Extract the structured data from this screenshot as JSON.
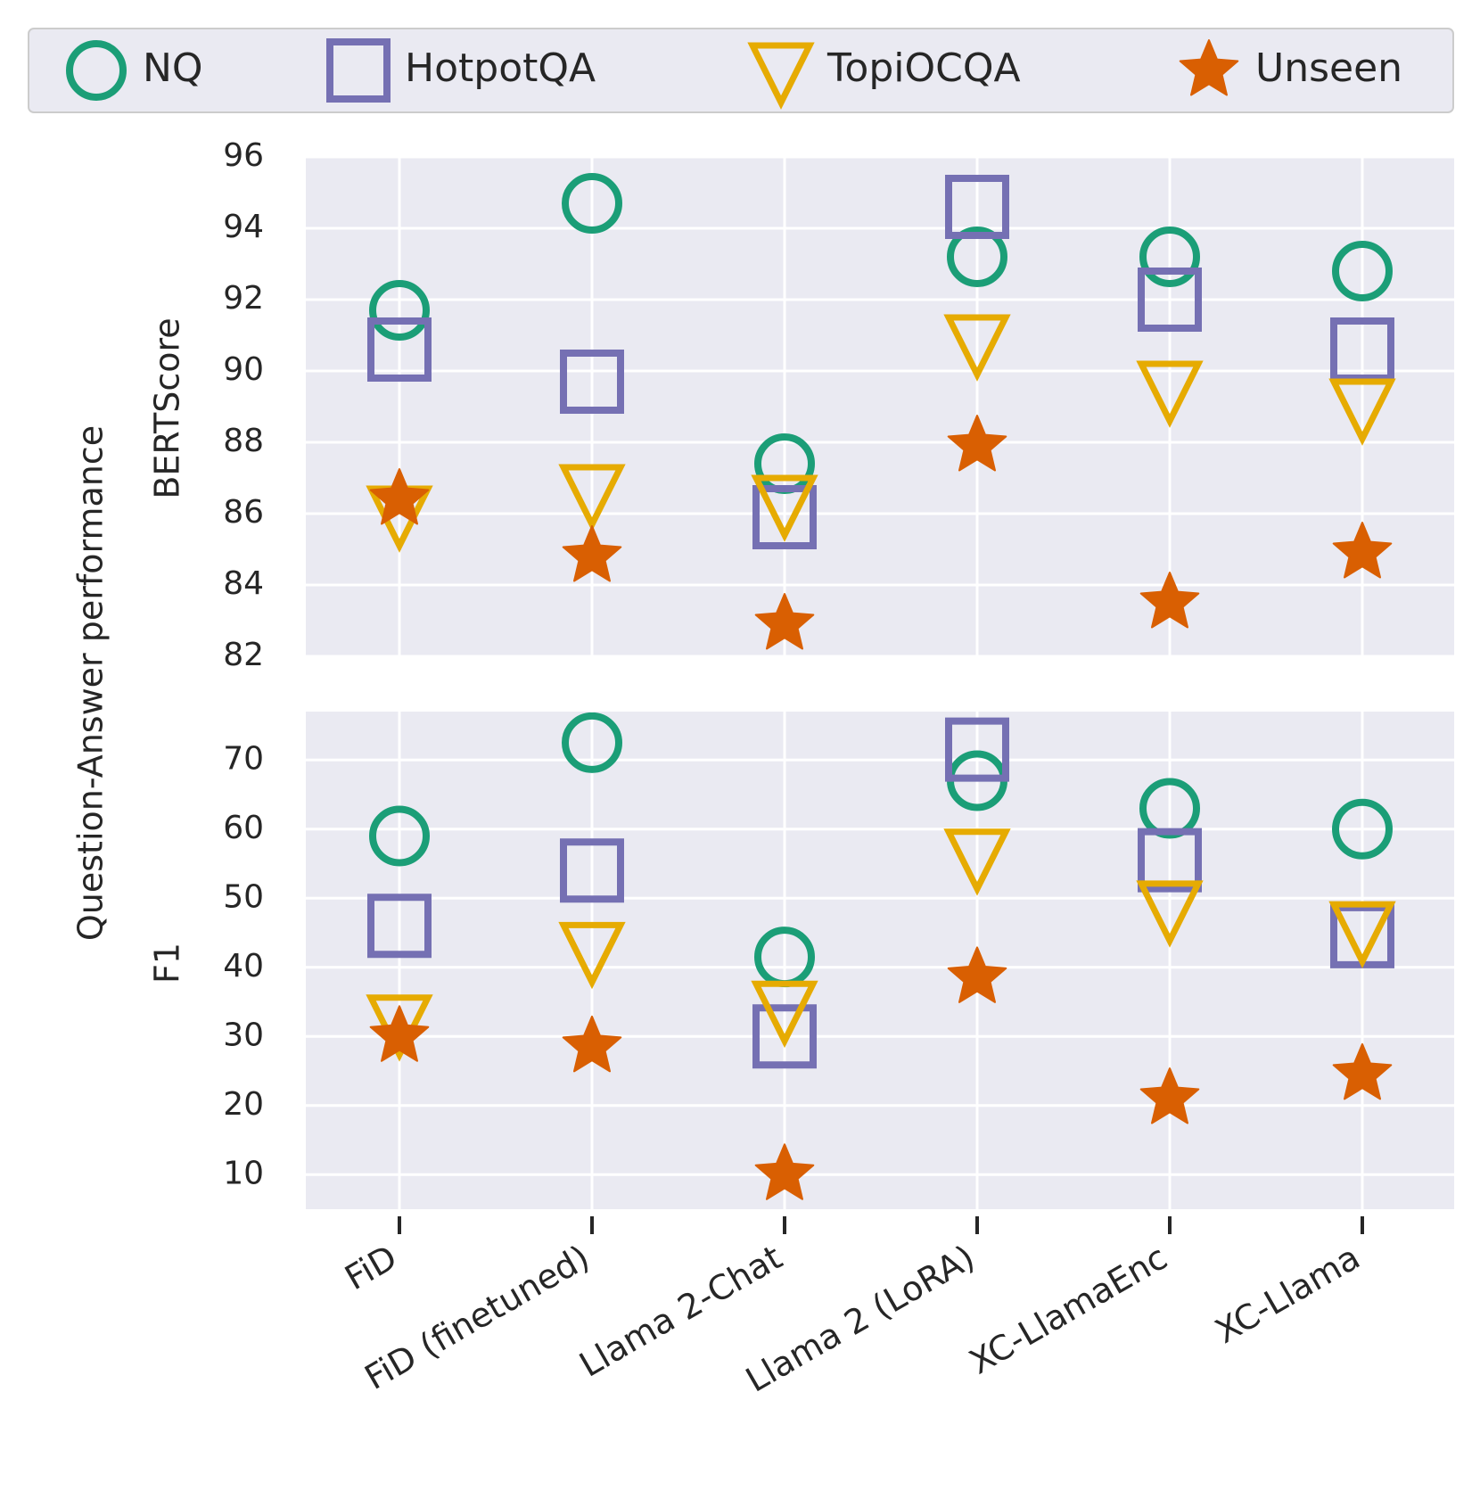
{
  "chart_data": {
    "type": "scatter",
    "suptitle_ylabel": "Question-Answer performance",
    "categories": [
      "FiD",
      "FiD (finetuned)",
      "Llama 2-Chat",
      "Llama 2 (LoRA)",
      "XC-LlamaEnc",
      "XC-Llama"
    ],
    "legend": {
      "placement": "top",
      "entries": [
        {
          "name": "NQ",
          "marker": "circle",
          "color": "#1b9e77"
        },
        {
          "name": "HotpotQA",
          "marker": "square",
          "color": "#7570b3"
        },
        {
          "name": "TopiOCQA",
          "marker": "triangle-down",
          "color": "#e6ab02"
        },
        {
          "name": "Unseen",
          "marker": "star",
          "color": "#d95f02"
        }
      ]
    },
    "panels": [
      {
        "ylabel": "BERTScore",
        "ylim": [
          82,
          96
        ],
        "yticks": [
          "82",
          "84",
          "86",
          "88",
          "90",
          "92",
          "94",
          "96"
        ],
        "series": [
          {
            "name": "NQ",
            "values": [
              91.7,
              94.7,
              87.4,
              93.2,
              93.2,
              92.8
            ]
          },
          {
            "name": "HotpotQA",
            "values": [
              90.6,
              89.7,
              85.9,
              94.6,
              92.0,
              90.6
            ]
          },
          {
            "name": "TopiOCQA",
            "values": [
              86.0,
              86.6,
              86.3,
              90.8,
              89.5,
              89.0
            ]
          },
          {
            "name": "Unseen",
            "values": [
              86.4,
              84.8,
              82.9,
              87.9,
              83.5,
              84.9
            ]
          }
        ]
      },
      {
        "ylabel": "F1",
        "ylim": [
          5,
          77
        ],
        "yticks": [
          "10",
          "20",
          "30",
          "40",
          "50",
          "60",
          "70"
        ],
        "series": [
          {
            "name": "NQ",
            "values": [
              59,
              72.5,
              41.5,
              67,
              63,
              60
            ]
          },
          {
            "name": "HotpotQA",
            "values": [
              46,
              54,
              30,
              71.5,
              55.5,
              44.5
            ]
          },
          {
            "name": "TopiOCQA",
            "values": [
              32,
              42.5,
              34,
              56,
              48.5,
              45.5
            ]
          },
          {
            "name": "Unseen",
            "values": [
              30,
              28.5,
              10,
              38.5,
              21,
              24.5
            ]
          }
        ]
      }
    ]
  }
}
